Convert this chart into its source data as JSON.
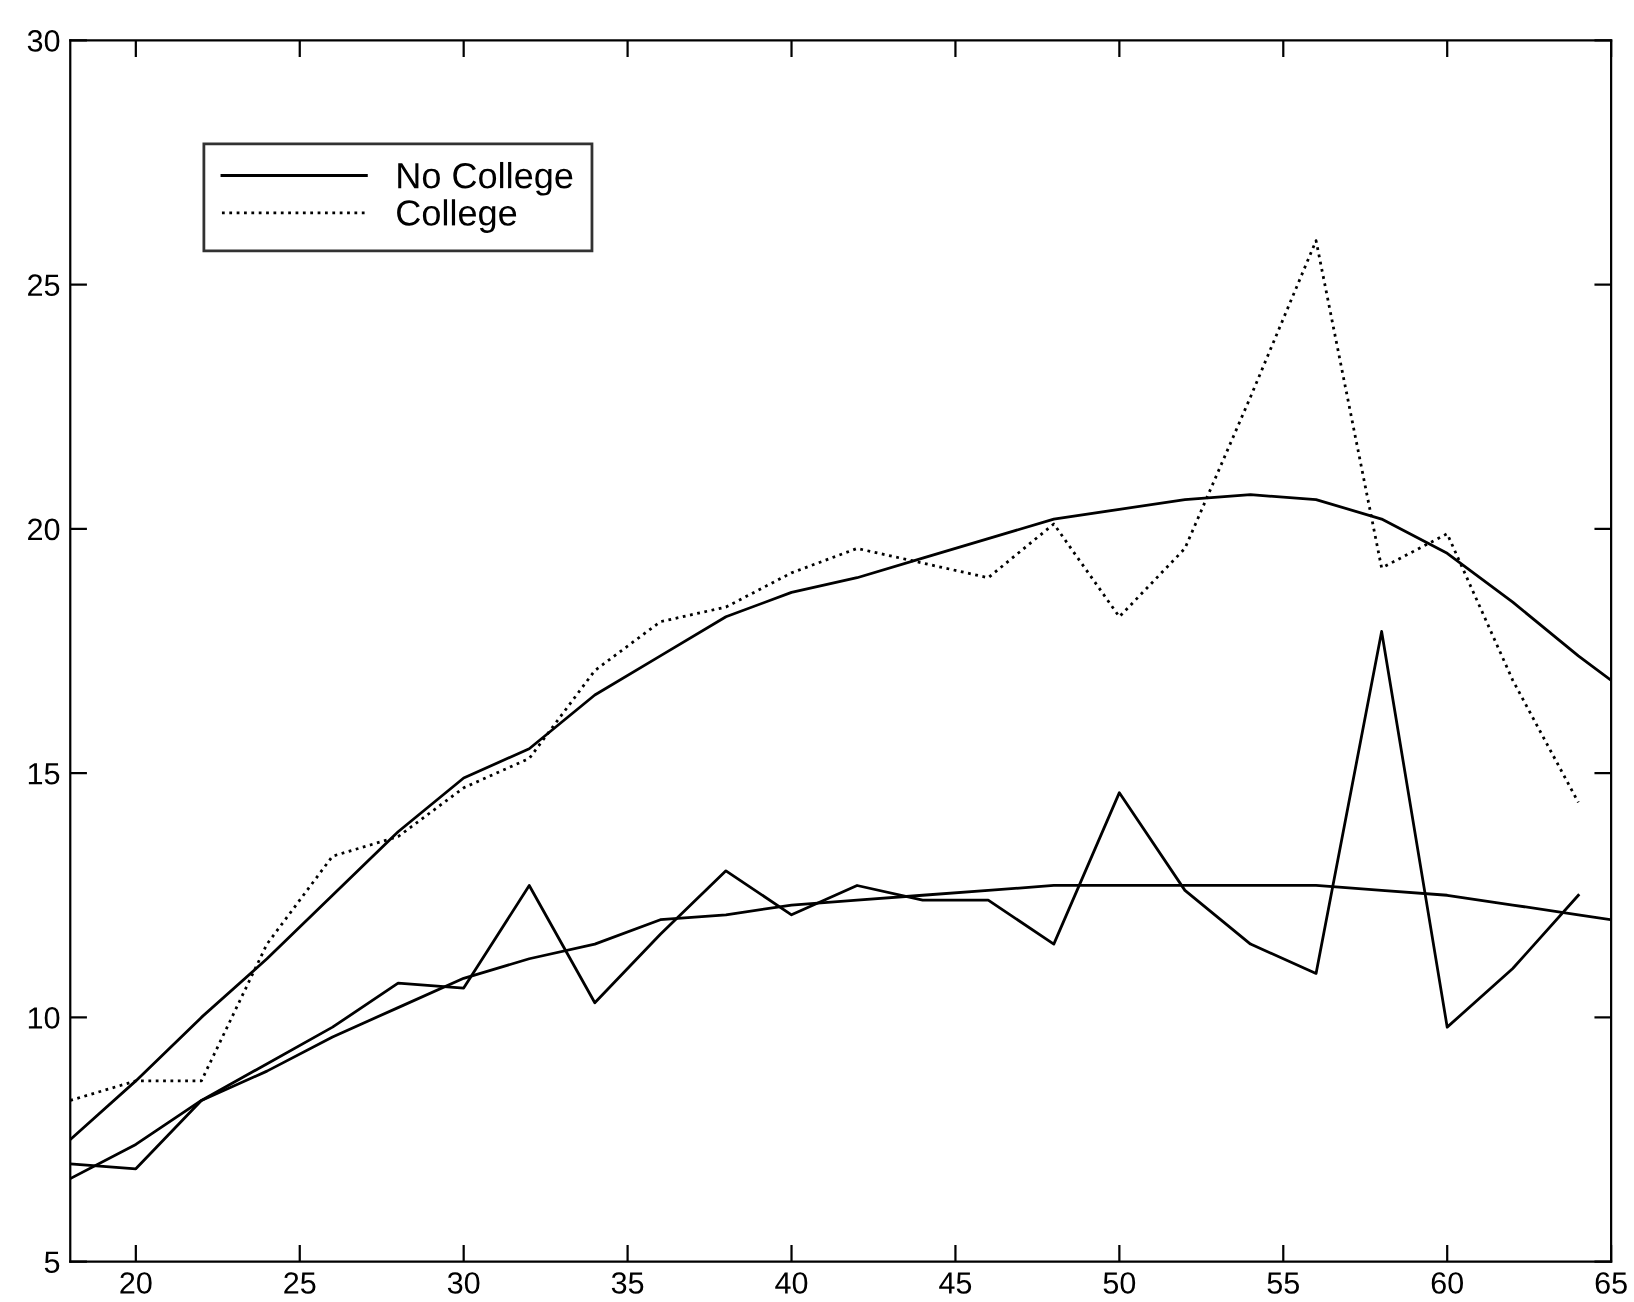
{
  "chart_data": {
    "type": "line",
    "xlim": [
      18,
      65
    ],
    "ylim": [
      5,
      30
    ],
    "xticks": [
      20,
      25,
      30,
      35,
      40,
      45,
      50,
      55,
      60,
      65
    ],
    "yticks": [
      5,
      10,
      15,
      20,
      25,
      30
    ],
    "grid": false,
    "legend": "top left",
    "marker": "none",
    "series": [
      {
        "name": "No College",
        "color": "#000000",
        "line_style": "solid",
        "x": [
          18,
          20,
          22,
          26,
          28,
          30,
          32,
          34,
          36,
          38,
          40,
          42,
          44,
          46,
          48,
          50,
          52,
          54,
          56,
          58,
          60,
          62,
          64
        ],
        "values": [
          7.0,
          6.9,
          8.3,
          9.8,
          10.7,
          10.6,
          12.7,
          10.3,
          11.7,
          13.0,
          12.1,
          12.7,
          12.4,
          12.4,
          11.5,
          14.6,
          12.6,
          11.5,
          10.9,
          17.9,
          9.8,
          11.0,
          12.5
        ]
      },
      {
        "name": "College",
        "color": "#000000",
        "line_style": "dotted",
        "x": [
          18,
          20,
          22,
          24,
          26,
          28,
          30,
          32,
          34,
          36,
          38,
          40,
          42,
          44,
          46,
          48,
          50,
          52,
          54,
          56,
          58,
          60,
          62,
          64
        ],
        "values": [
          8.3,
          8.7,
          8.7,
          11.5,
          13.3,
          13.7,
          14.7,
          15.3,
          17.1,
          18.1,
          18.4,
          19.1,
          19.6,
          19.3,
          19.0,
          20.1,
          18.2,
          19.6,
          22.7,
          25.9,
          19.2,
          19.9,
          16.9,
          14.4
        ]
      },
      {
        "color": "#000000",
        "line_style": "solid",
        "x": [
          18,
          20,
          22,
          24,
          26,
          28,
          30,
          32,
          34,
          36,
          38,
          40,
          42,
          44,
          46,
          48,
          50,
          52,
          54,
          56,
          58,
          60,
          62,
          64,
          65
        ],
        "values": [
          6.7,
          7.4,
          8.3,
          8.9,
          9.6,
          10.2,
          10.8,
          11.2,
          11.5,
          12.0,
          12.1,
          12.3,
          12.4,
          12.5,
          12.6,
          12.7,
          12.7,
          12.7,
          12.7,
          12.7,
          12.6,
          12.5,
          12.3,
          12.1,
          12.0
        ]
      },
      {
        "color": "#000000",
        "line_style": "solid",
        "x": [
          18,
          20,
          22,
          24,
          26,
          28,
          30,
          32,
          34,
          36,
          38,
          40,
          42,
          44,
          46,
          48,
          50,
          52,
          54,
          56,
          58,
          60,
          62,
          64,
          65
        ],
        "values": [
          7.5,
          8.7,
          10.0,
          11.2,
          12.5,
          13.8,
          14.9,
          15.5,
          16.6,
          17.4,
          18.2,
          18.7,
          19.0,
          19.4,
          19.8,
          20.2,
          20.4,
          20.6,
          20.7,
          20.6,
          20.2,
          19.5,
          18.5,
          17.4,
          16.9
        ]
      }
    ]
  }
}
